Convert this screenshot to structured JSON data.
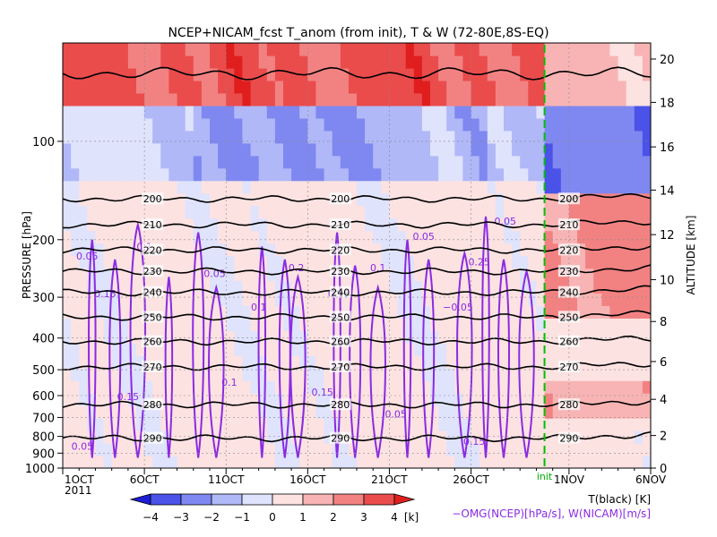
{
  "chart_data": {
    "type": "heatmap",
    "title": "NCEP+NICAM_fcst T_anom (from init), T & W  (72-80E,8S-EQ)",
    "ylabel_left": "PRESSURE [hPa]",
    "ylabel_right": "ALTITUDE [km]",
    "x_ticks": [
      "1OCT",
      "6OCT",
      "11OCT",
      "16OCT",
      "21OCT",
      "26OCT",
      "1NOV",
      "6NOV"
    ],
    "x_tick_days": [
      0,
      5,
      10,
      15,
      20,
      25,
      31,
      36
    ],
    "x_year": "2011",
    "x_range_days": [
      0,
      36
    ],
    "init_day": 29.5,
    "init_label": "init",
    "pressure_ticks": [
      100,
      200,
      300,
      400,
      500,
      600,
      700,
      800,
      900,
      1000
    ],
    "pressure_tick_labels": [
      "100",
      "200",
      "300",
      "400",
      "500",
      "600",
      "700",
      "800",
      "900",
      "1000"
    ],
    "pressure_range": [
      1000,
      50
    ],
    "altitude_ticks": [
      0,
      2,
      4,
      6,
      8,
      10,
      12,
      14,
      16,
      18,
      20
    ],
    "altitude_tick_labels": [
      "0",
      "2",
      "4",
      "6",
      "8",
      "10",
      "12",
      "14",
      "16",
      "18",
      "20"
    ],
    "colorbar": {
      "levels": [
        -4,
        -3,
        -2,
        -1,
        0,
        1,
        2,
        3,
        4
      ],
      "labels": [
        "−4",
        "−3",
        "−2",
        "−1",
        "0",
        "1",
        "2",
        "3",
        "4"
      ],
      "colors": [
        "#1d1dd6",
        "#4a52e8",
        "#7f88f0",
        "#b0b8f8",
        "#dfe3fc",
        "#fde2e2",
        "#f8b4b4",
        "#f28282",
        "#ea4c4c",
        "#e01e1e"
      ],
      "unit": "[k]"
    },
    "temperature_contours_K": [
      200,
      210,
      220,
      230,
      240,
      250,
      260,
      270,
      280,
      290
    ],
    "temperature_pressure_hPa": [
      150,
      180,
      215,
      250,
      290,
      345,
      410,
      490,
      640,
      810
    ],
    "omega_contour_labels": [
      "0.05",
      "0.1",
      "0.15",
      "0.2",
      "0.25",
      "−0.05"
    ],
    "legend_t": "T(black) [K]",
    "legend_w": "−OMG(NCEP)[hPa/s], W(NICAM)[m/s]"
  },
  "colors": {
    "temperature_line": "#000000",
    "omega_line": "#8a2be2",
    "init_line": "#00c000"
  }
}
